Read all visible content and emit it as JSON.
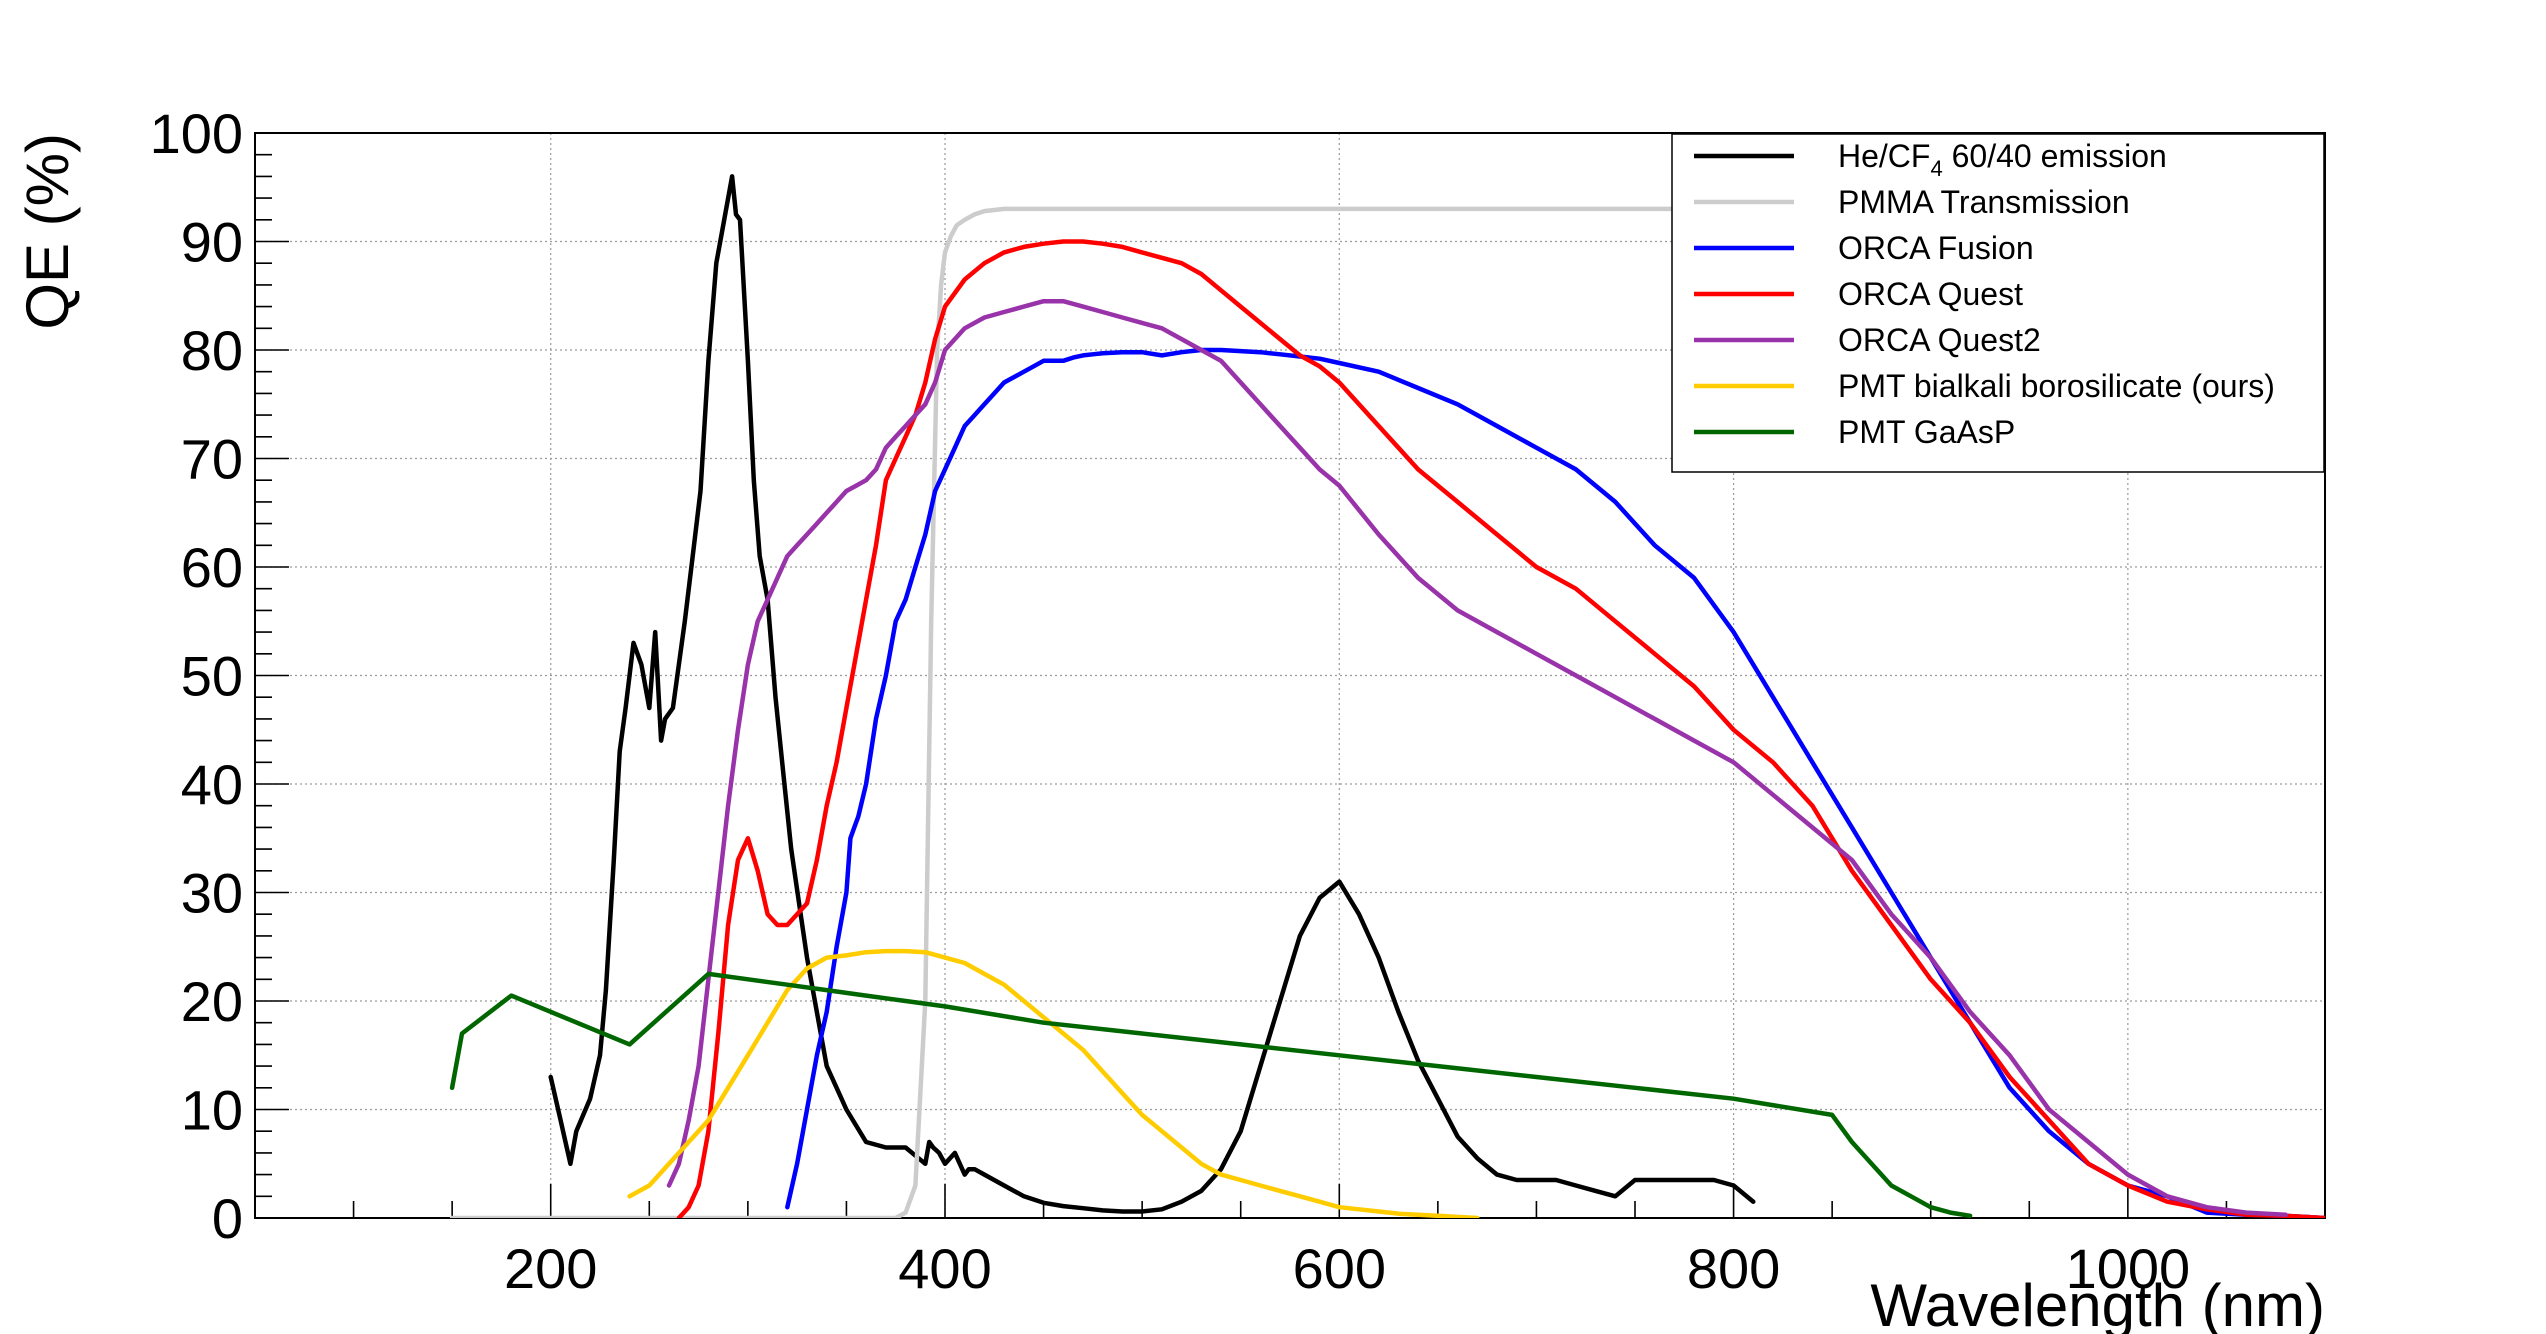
{
  "chart_data": {
    "type": "line",
    "title": "",
    "xlabel": "Wavelength (nm)",
    "ylabel": "QE (%)",
    "xlim": [
      50,
      1100
    ],
    "ylim": [
      0,
      100
    ],
    "xticks": [
      200,
      400,
      600,
      800,
      1000
    ],
    "xtick_labels": [
      "200",
      "400",
      "600",
      "800",
      "1000"
    ],
    "yticks": [
      0,
      10,
      20,
      30,
      40,
      50,
      60,
      70,
      80,
      90,
      100
    ],
    "ytick_labels": [
      "0",
      "10",
      "20",
      "30",
      "40",
      "50",
      "60",
      "70",
      "80",
      "90",
      "100"
    ],
    "grid": true,
    "legend_position": "top-right",
    "series": [
      {
        "name": "He/CF4 60/40 emission",
        "label_main": "He/CF",
        "label_sub": "4",
        "label_rest": " 60/40 emission",
        "color": "#000000",
        "x": [
          200,
          205,
          210,
          213,
          220,
          225,
          228,
          232,
          235,
          238,
          242,
          246,
          250,
          253,
          256,
          258,
          262,
          268,
          272,
          276,
          280,
          284,
          288,
          292,
          294,
          296,
          300,
          303,
          306,
          310,
          314,
          318,
          322,
          326,
          330,
          333,
          336,
          340,
          345,
          350,
          360,
          370,
          380,
          390,
          392,
          394,
          397,
          400,
          405,
          410,
          412,
          415,
          420,
          430,
          440,
          450,
          460,
          470,
          480,
          490,
          500,
          510,
          520,
          530,
          540,
          550,
          560,
          570,
          580,
          590,
          600,
          610,
          620,
          630,
          640,
          650,
          660,
          670,
          680,
          690,
          700,
          710,
          720,
          730,
          740,
          750,
          760,
          770,
          780,
          790,
          800,
          810
        ],
        "y": [
          13,
          9,
          5,
          8,
          11,
          15,
          21,
          33,
          43,
          47,
          53,
          51,
          47,
          54,
          44,
          46,
          47,
          55,
          61,
          67,
          79,
          88,
          92,
          96,
          92.5,
          92,
          79,
          68,
          61,
          57,
          48,
          41,
          34,
          29,
          24,
          21,
          18,
          14,
          12,
          10,
          7,
          6.5,
          6.5,
          5,
          7,
          6.5,
          6,
          5,
          6,
          4,
          4.5,
          4.5,
          4,
          3,
          2,
          1.4,
          1.1,
          0.9,
          0.7,
          0.6,
          0.6,
          0.8,
          1.5,
          2.5,
          4.5,
          8,
          14,
          20,
          26,
          29.5,
          31,
          28,
          24,
          19,
          14.5,
          11,
          7.5,
          5.5,
          4,
          3.5,
          3.5,
          3.5,
          3,
          2.5,
          2,
          3.5,
          3.5,
          3.5,
          3.5,
          3.5,
          3,
          1.5
        ]
      },
      {
        "name": "PMMA Transmission",
        "color": "#cccccc",
        "x": [
          150,
          375,
          380,
          385,
          390,
          393,
          396,
          398,
          400,
          403,
          406,
          410,
          415,
          420,
          430,
          500,
          600,
          700,
          800,
          850,
          900
        ],
        "y": [
          0,
          0,
          0.5,
          3,
          20,
          55,
          80,
          86,
          89,
          90.5,
          91.5,
          92,
          92.5,
          92.8,
          93,
          93,
          93,
          93,
          93,
          93,
          93
        ]
      },
      {
        "name": "ORCA Fusion",
        "color": "#0000ff",
        "x": [
          320,
          325,
          330,
          335,
          340,
          345,
          350,
          352,
          354,
          356,
          360,
          365,
          370,
          375,
          380,
          385,
          390,
          395,
          400,
          405,
          410,
          415,
          420,
          425,
          430,
          435,
          440,
          445,
          450,
          455,
          460,
          465,
          470,
          475,
          480,
          490,
          500,
          510,
          520,
          530,
          540,
          550,
          560,
          570,
          580,
          590,
          600,
          620,
          640,
          660,
          680,
          700,
          720,
          740,
          760,
          780,
          800,
          820,
          840,
          860,
          880,
          900,
          920,
          940,
          960,
          980,
          1000,
          1020,
          1040,
          1060,
          1080,
          1090,
          1100
        ],
        "y": [
          1,
          5,
          10,
          15,
          19,
          25,
          30,
          35,
          36,
          37,
          40,
          46,
          50,
          55,
          57,
          60,
          63,
          67,
          69,
          71,
          73,
          74,
          75,
          76,
          77,
          77.5,
          78,
          78.5,
          79,
          79,
          79,
          79.3,
          79.5,
          79.6,
          79.7,
          79.8,
          79.8,
          79.5,
          79.8,
          80,
          80,
          79.9,
          79.8,
          79.6,
          79.4,
          79.2,
          78.8,
          78,
          76.5,
          75,
          73,
          71,
          69,
          66,
          62,
          59,
          54,
          48,
          42,
          36,
          30,
          24,
          18,
          12,
          8,
          5,
          3,
          2,
          0.5,
          0.3,
          0.2,
          0.1,
          0
        ]
      },
      {
        "name": "ORCA Quest",
        "color": "#ff0000",
        "x": [
          265,
          270,
          275,
          280,
          285,
          290,
          295,
          300,
          305,
          310,
          315,
          320,
          325,
          330,
          335,
          340,
          345,
          350,
          355,
          360,
          365,
          370,
          375,
          380,
          385,
          390,
          395,
          400,
          410,
          420,
          430,
          440,
          450,
          460,
          470,
          480,
          490,
          500,
          510,
          520,
          530,
          540,
          550,
          560,
          570,
          580,
          590,
          600,
          620,
          640,
          660,
          680,
          700,
          720,
          740,
          760,
          780,
          800,
          820,
          840,
          860,
          880,
          900,
          920,
          940,
          960,
          980,
          1000,
          1020,
          1040,
          1060,
          1080,
          1090,
          1100
        ],
        "y": [
          0,
          1,
          3,
          8,
          17,
          27,
          33,
          35,
          32,
          28,
          27,
          27,
          28,
          29,
          33,
          38,
          42,
          47,
          52,
          57,
          62,
          68,
          70,
          72,
          74,
          77,
          81,
          84,
          86.5,
          88,
          89,
          89.5,
          89.8,
          90,
          90,
          89.8,
          89.5,
          89,
          88.5,
          88,
          87,
          85.5,
          84,
          82.5,
          81,
          79.5,
          78.5,
          77,
          73,
          69,
          66,
          63,
          60,
          58,
          55,
          52,
          49,
          45,
          42,
          38,
          32,
          27,
          22,
          18,
          13,
          9,
          5,
          3,
          1.5,
          0.8,
          0.3,
          0.2,
          0.1,
          0
        ]
      },
      {
        "name": "ORCA Quest2",
        "color": "#9933aa",
        "x": [
          260,
          265,
          270,
          275,
          280,
          285,
          290,
          295,
          300,
          305,
          310,
          315,
          320,
          325,
          330,
          335,
          340,
          345,
          350,
          355,
          360,
          365,
          370,
          375,
          380,
          385,
          390,
          395,
          400,
          410,
          420,
          430,
          440,
          450,
          460,
          470,
          480,
          490,
          500,
          510,
          520,
          530,
          540,
          550,
          560,
          570,
          580,
          590,
          600,
          620,
          640,
          660,
          680,
          700,
          720,
          740,
          760,
          780,
          800,
          820,
          840,
          860,
          880,
          900,
          920,
          940,
          960,
          980,
          1000,
          1020,
          1040,
          1060,
          1080
        ],
        "y": [
          3,
          5,
          9,
          14,
          22,
          30,
          38,
          45,
          51,
          55,
          57,
          59,
          61,
          62,
          63,
          64,
          65,
          66,
          67,
          67.5,
          68,
          69,
          71,
          72,
          73,
          74,
          75,
          77,
          80,
          82,
          83,
          83.5,
          84,
          84.5,
          84.5,
          84,
          83.5,
          83,
          82.5,
          82,
          81,
          80,
          79,
          77,
          75,
          73,
          71,
          69,
          67.5,
          63,
          59,
          56,
          54,
          52,
          50,
          48,
          46,
          44,
          42,
          39,
          36,
          33,
          28,
          24,
          19,
          15,
          10,
          7,
          4,
          2,
          1,
          0.5,
          0.3
        ]
      },
      {
        "name": "PMT bialkali borosilicate (ours)",
        "color": "#ffcc00",
        "x": [
          240,
          250,
          260,
          270,
          280,
          290,
          300,
          310,
          320,
          330,
          340,
          350,
          360,
          370,
          380,
          390,
          400,
          410,
          420,
          430,
          440,
          450,
          460,
          470,
          480,
          490,
          500,
          510,
          520,
          530,
          540,
          550,
          560,
          570,
          580,
          590,
          600,
          610,
          620,
          630,
          640,
          650,
          660,
          670
        ],
        "y": [
          2,
          3,
          5,
          7,
          9,
          12,
          15,
          18,
          21,
          23,
          24,
          24.2,
          24.5,
          24.6,
          24.6,
          24.5,
          24,
          23.5,
          22.5,
          21.5,
          20,
          18.5,
          17,
          15.5,
          13.5,
          11.5,
          9.5,
          8,
          6.5,
          5,
          4,
          3.5,
          3,
          2.5,
          2,
          1.5,
          1,
          0.8,
          0.6,
          0.4,
          0.3,
          0.2,
          0.1,
          0
        ]
      },
      {
        "name": "PMT GaAsP",
        "color": "#006600",
        "x": [
          150,
          155,
          180,
          240,
          280,
          300,
          320,
          340,
          360,
          380,
          400,
          450,
          500,
          550,
          600,
          650,
          700,
          750,
          800,
          850,
          860,
          870,
          880,
          890,
          900,
          910,
          920
        ],
        "y": [
          12,
          17,
          20.5,
          16,
          22.5,
          22,
          21.5,
          21,
          20.5,
          20,
          19.5,
          18,
          17,
          16,
          15,
          14,
          13,
          12,
          11,
          9.5,
          7,
          5,
          3,
          2,
          1,
          0.5,
          0.2
        ]
      }
    ]
  }
}
